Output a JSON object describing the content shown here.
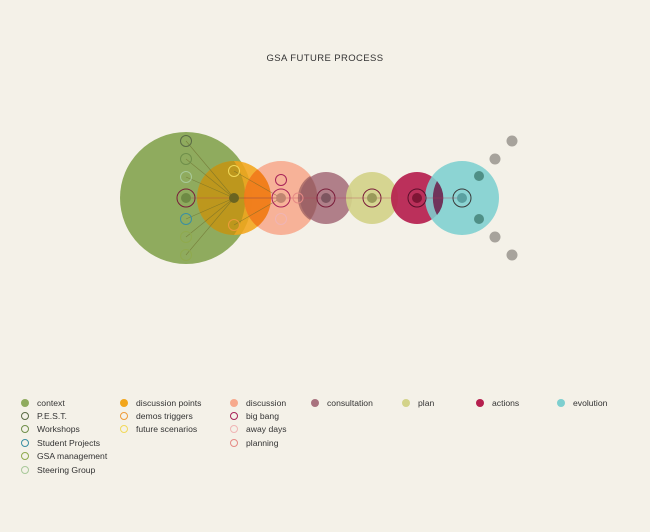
{
  "title": "GSA FUTURE PROCESS",
  "colors": {
    "background": "#f4f1e8",
    "context": "#8fab5e",
    "discussion_points": "#f2a51a",
    "discussion": "#f7a98c",
    "consultation": "#a8727e",
    "plan": "#d3d389",
    "actions": "#b51f4e",
    "evolution": "#7dcfcf",
    "pest": "#5a6b45",
    "workshops": "#6f8f4a",
    "student_projects": "#3a8fa3",
    "gsa_management": "#8faa4e",
    "steering_group": "#a8c99a",
    "demos_triggers": "#ee9b3a",
    "future_scenarios": "#f1d95a",
    "big_bang": "#a82459",
    "away_days": "#f0b5b5",
    "planning": "#e58a85",
    "grey_dots": "#a7a39c"
  },
  "legend": [
    [
      {
        "label": "context",
        "swatch": "filled",
        "color": "#8fab5e"
      },
      {
        "label": "P.E.S.T.",
        "swatch": "ring",
        "color": "#5a6b45"
      },
      {
        "label": "Workshops",
        "swatch": "ring",
        "color": "#6f8f4a"
      },
      {
        "label": "Student Projects",
        "swatch": "ring",
        "color": "#3a8fa3"
      },
      {
        "label": "GSA management",
        "swatch": "ring",
        "color": "#8faa4e"
      },
      {
        "label": "Steering Group",
        "swatch": "ring",
        "color": "#a8c99a"
      }
    ],
    [
      {
        "label": "discussion points",
        "swatch": "filled",
        "color": "#f2a51a"
      },
      {
        "label": "demos triggers",
        "swatch": "ring",
        "color": "#ee9b3a"
      },
      {
        "label": "future scenarios",
        "swatch": "ring",
        "color": "#f1d95a"
      }
    ],
    [
      {
        "label": "discussion",
        "swatch": "filled",
        "color": "#f7a98c"
      },
      {
        "label": "big bang",
        "swatch": "ring",
        "color": "#a82459"
      },
      {
        "label": "away days",
        "swatch": "ring",
        "color": "#f0b5b5"
      },
      {
        "label": "planning",
        "swatch": "ring",
        "color": "#e58a85"
      }
    ],
    [
      {
        "label": "consultation",
        "swatch": "filled",
        "color": "#a8727e"
      }
    ],
    [
      {
        "label": "plan",
        "swatch": "filled",
        "color": "#d3d389"
      }
    ],
    [
      {
        "label": "actions",
        "swatch": "filled",
        "color": "#b51f4e"
      }
    ],
    [
      {
        "label": "evolution",
        "swatch": "filled",
        "color": "#7dcfcf"
      }
    ]
  ]
}
